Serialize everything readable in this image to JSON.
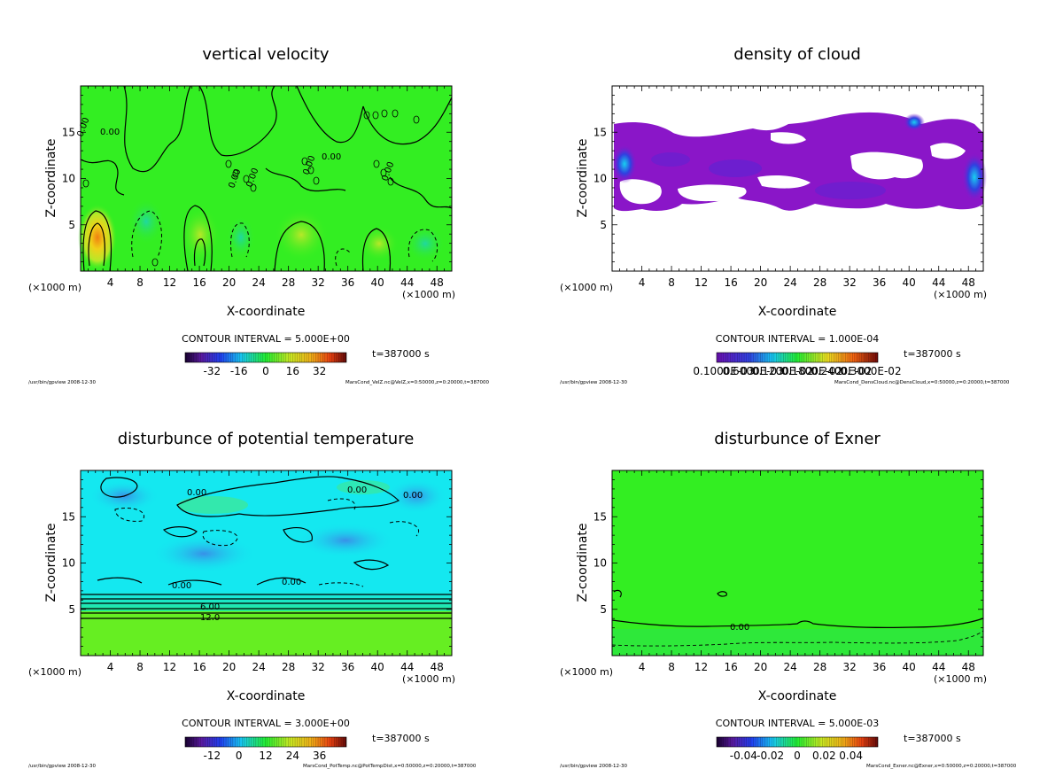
{
  "chart_data": [
    {
      "type": "heatmap",
      "title": "vertical velocity",
      "xlabel": "X-coordinate",
      "ylabel": "Z-coordinate",
      "x_unit": "(×1000 m)",
      "xlim": [
        0,
        50
      ],
      "ylim": [
        0,
        20
      ],
      "x_ticks": [
        4,
        8,
        12,
        16,
        20,
        24,
        28,
        32,
        36,
        40,
        44,
        48
      ],
      "y_ticks": [
        5,
        10,
        15
      ],
      "contour_interval": "CONTOUR INTERVAL = 5.000E+00",
      "time_label": "t=387000 s",
      "colorbar_ticks": [
        "-32",
        "-16",
        "0",
        "16",
        "32"
      ],
      "contour_labels": [
        "0.00",
        "0.00",
        "0.00",
        "0.00",
        "0.00",
        "0.00",
        "0.00"
      ],
      "footer_left": "/usr/bin/gpview  2008-12-30",
      "footer_right": "MarsCond_VelZ.nc@VelZ,x=0:50000,z=0:20000,t=387000"
    },
    {
      "type": "heatmap",
      "title": "density of cloud",
      "xlabel": "X-coordinate",
      "ylabel": "Z-coordinate",
      "x_unit": "(×1000 m)",
      "xlim": [
        0,
        50
      ],
      "ylim": [
        0,
        20
      ],
      "x_ticks": [
        4,
        8,
        12,
        16,
        20,
        24,
        28,
        32,
        36,
        40,
        44,
        48
      ],
      "y_ticks": [
        5,
        10,
        15
      ],
      "contour_interval": "CONTOUR INTERVAL = 1.000E-04",
      "time_label": "t=387000 s",
      "colorbar_ticks": [
        "0.1000E-03",
        "0.6000E-03",
        "0.1200E-02",
        "0.1800E-02",
        "0.2400E-02",
        "0.3000E-02"
      ],
      "contour_labels": [],
      "footer_left": "/usr/bin/gpview  2008-12-30",
      "footer_right": "MarsCond_DensCloud.nc@DensCloud,x=0:50000,z=0:20000,t=387000"
    },
    {
      "type": "heatmap",
      "title": "disturbunce of potential temperature",
      "xlabel": "X-coordinate",
      "ylabel": "Z-coordinate",
      "x_unit": "(×1000 m)",
      "xlim": [
        0,
        50
      ],
      "ylim": [
        0,
        20
      ],
      "x_ticks": [
        4,
        8,
        12,
        16,
        20,
        24,
        28,
        32,
        36,
        40,
        44,
        48
      ],
      "y_ticks": [
        5,
        10,
        15
      ],
      "contour_interval": "CONTOUR INTERVAL = 3.000E+00",
      "time_label": "t=387000 s",
      "colorbar_ticks": [
        "-12",
        "0",
        "12",
        "24",
        "36"
      ],
      "contour_labels": [
        "0.00",
        "0.00",
        "0.00",
        "0.00",
        "0.00",
        "6.00",
        "12.0"
      ],
      "footer_left": "/usr/bin/gpview  2008-12-30",
      "footer_right": "MarsCond_PotTemp.nc@PotTempDist,x=0:50000,z=0:20000,t=387000"
    },
    {
      "type": "heatmap",
      "title": "disturbunce of Exner",
      "xlabel": "X-coordinate",
      "ylabel": "Z-coordinate",
      "x_unit": "(×1000 m)",
      "xlim": [
        0,
        50
      ],
      "ylim": [
        0,
        20
      ],
      "x_ticks": [
        4,
        8,
        12,
        16,
        20,
        24,
        28,
        32,
        36,
        40,
        44,
        48
      ],
      "y_ticks": [
        5,
        10,
        15
      ],
      "contour_interval": "CONTOUR INTERVAL = 5.000E-03",
      "time_label": "t=387000 s",
      "colorbar_ticks": [
        "-0.04",
        "-0.02",
        "0",
        "0.02",
        "0.04"
      ],
      "contour_labels": [
        "0.00"
      ],
      "footer_left": "/usr/bin/gpview  2008-12-30",
      "footer_right": "MarsCond_Exner.nc@Exner,x=0:50000,z=0:20000,t=387000"
    }
  ],
  "colors": {
    "field_green": "#33ee22",
    "cloud_purple": "#8a16c8",
    "cloud_blue": "#3040e0",
    "temp_cyan": "#14e8f0",
    "temp_blue": "#3aa8f0"
  }
}
